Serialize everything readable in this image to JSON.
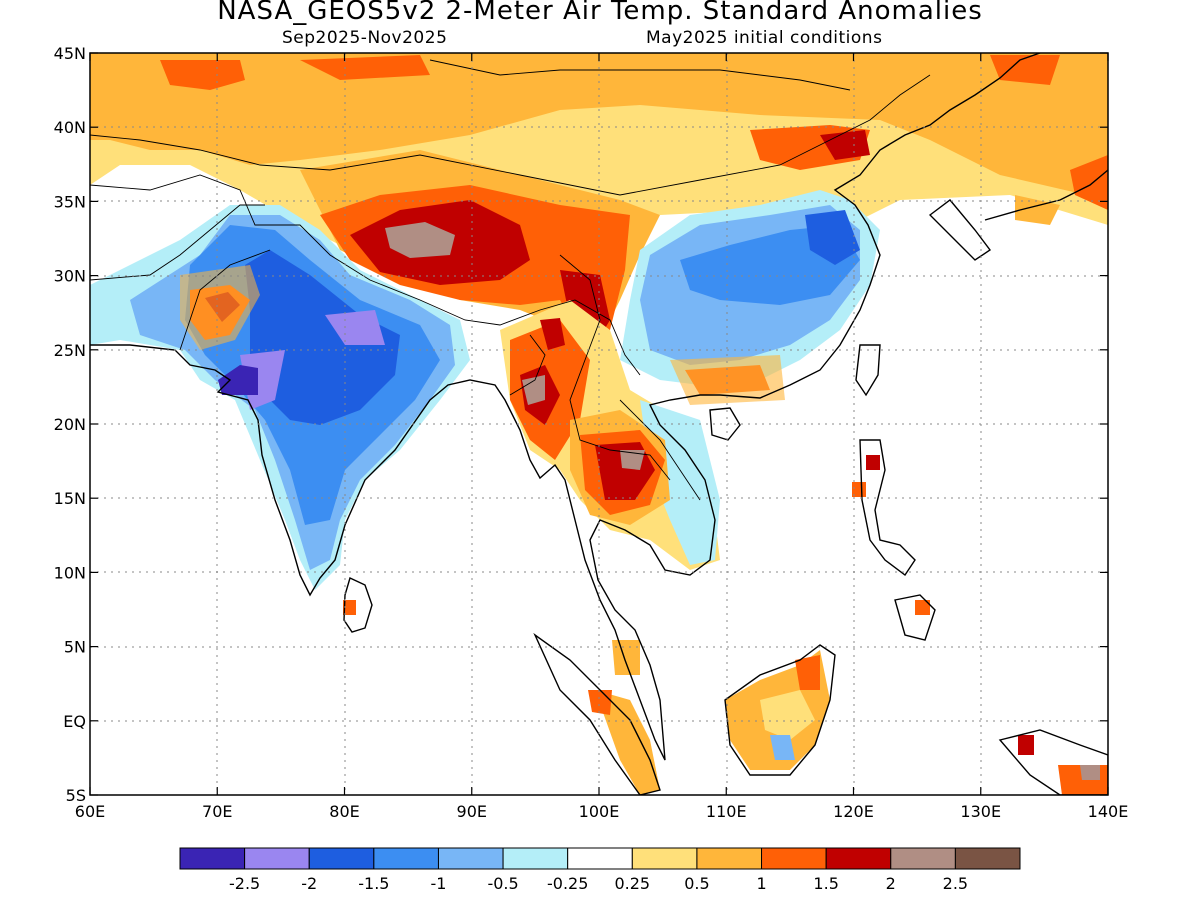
{
  "title": "NASA_GEOS5v2 2-Meter Air Temp. Standard Anomalies",
  "period": "Sep2025-Nov2025",
  "init": "May2025 initial conditions",
  "map": {
    "lon_range": [
      60,
      140
    ],
    "lat_range": [
      -5,
      45
    ],
    "lon_ticks": [
      {
        "value": 60,
        "label": "60E"
      },
      {
        "value": 70,
        "label": "70E"
      },
      {
        "value": 80,
        "label": "80E"
      },
      {
        "value": 90,
        "label": "90E"
      },
      {
        "value": 100,
        "label": "100E"
      },
      {
        "value": 110,
        "label": "110E"
      },
      {
        "value": 120,
        "label": "120E"
      },
      {
        "value": 130,
        "label": "130E"
      },
      {
        "value": 140,
        "label": "140E"
      }
    ],
    "lat_ticks": [
      {
        "value": 45,
        "label": "45N"
      },
      {
        "value": 40,
        "label": "40N"
      },
      {
        "value": 35,
        "label": "35N"
      },
      {
        "value": 30,
        "label": "30N"
      },
      {
        "value": 25,
        "label": "25N"
      },
      {
        "value": 20,
        "label": "20N"
      },
      {
        "value": 15,
        "label": "15N"
      },
      {
        "value": 10,
        "label": "10N"
      },
      {
        "value": 5,
        "label": "5N"
      },
      {
        "value": 0,
        "label": "EQ"
      },
      {
        "value": -5,
        "label": "5S"
      }
    ],
    "grid": "dotted"
  },
  "legend": {
    "colors": [
      "#3a24b4",
      "#9a86f0",
      "#1e5ee0",
      "#3c8ef2",
      "#78b6f6",
      "#b4eef8",
      "#ffffff",
      "#ffe07a",
      "#ffb63a",
      "#ff6006",
      "#c00000",
      "#b08e84",
      "#7a5444"
    ],
    "labels": [
      "-2.5",
      "-2",
      "-1.5",
      "-1",
      "-0.5",
      "-0.25",
      "0.25",
      "0.5",
      "1",
      "1.5",
      "2",
      "2.5"
    ]
  }
}
